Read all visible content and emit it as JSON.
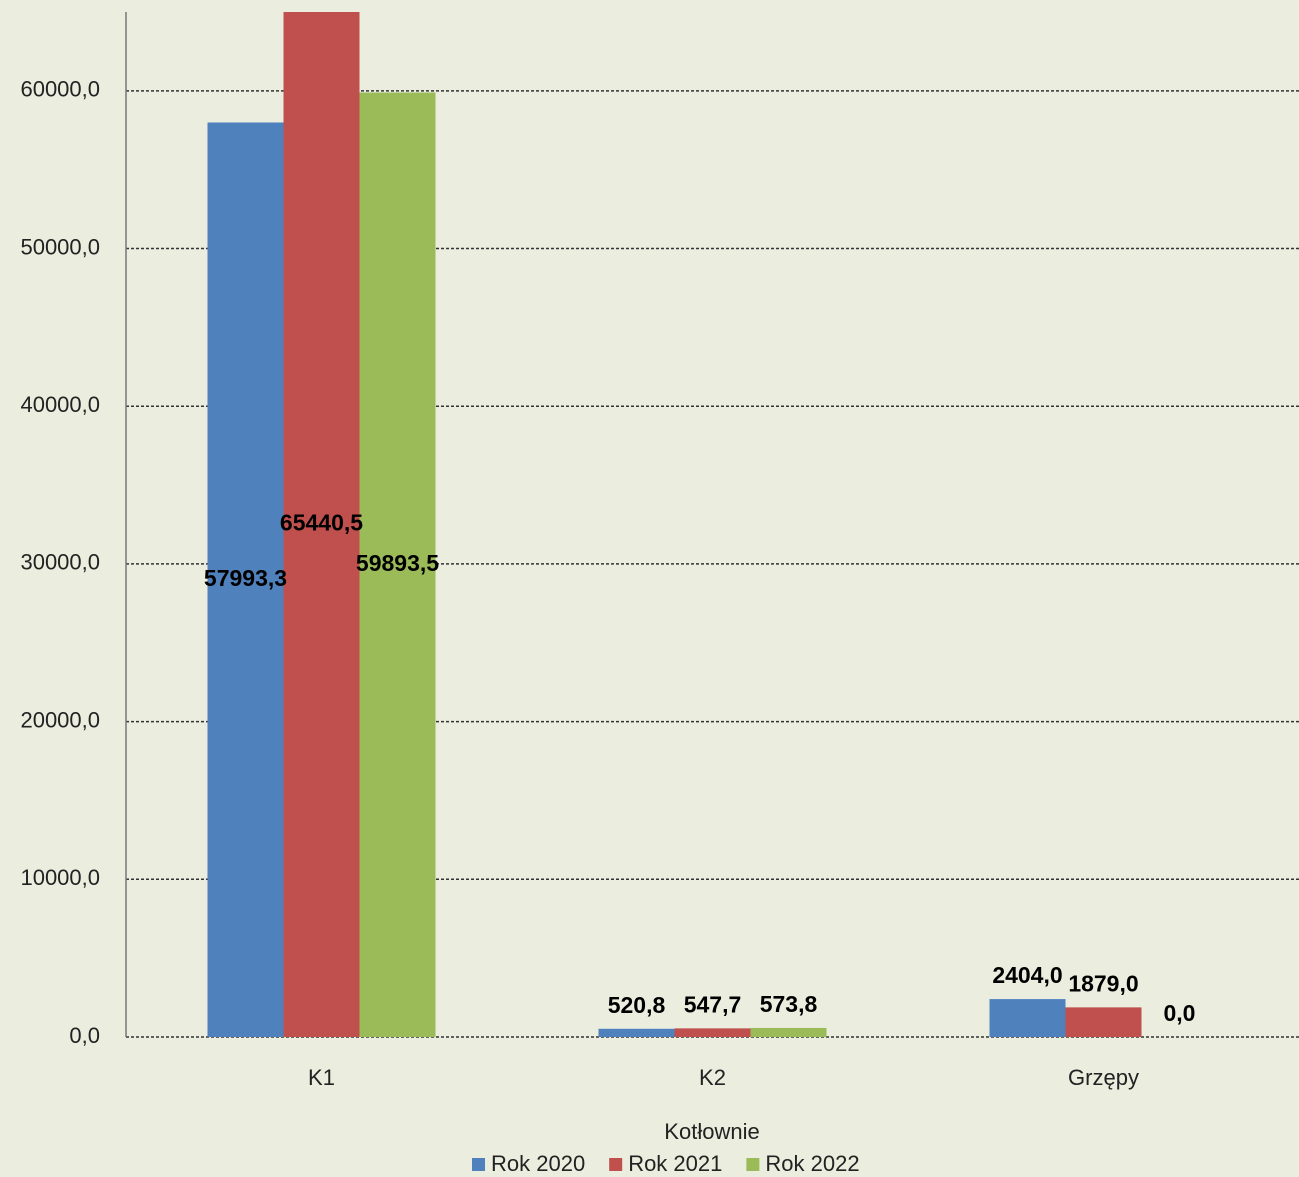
{
  "chart_data": {
    "type": "bar",
    "x_label": "Kotłownie",
    "categories": [
      "K1",
      "K2",
      "Grzępy"
    ],
    "series": [
      {
        "name": "Rok 2020",
        "color": "#4f81bd",
        "values": [
          57993.3,
          520.8,
          2404.0
        ],
        "value_labels": [
          "57993,3",
          "520,8",
          "2404,0"
        ]
      },
      {
        "name": "Rok 2021",
        "color": "#c0504d",
        "values": [
          65440.5,
          547.7,
          1879.0
        ],
        "value_labels": [
          "65440,5",
          "547,7",
          "1879,0"
        ]
      },
      {
        "name": "Rok 2022",
        "color": "#9bbb59",
        "values": [
          59893.5,
          573.8,
          0.0
        ],
        "value_labels": [
          "59893,5",
          "573,8",
          "0,0"
        ]
      }
    ],
    "ylim": [
      0,
      65000
    ],
    "yticks": [
      {
        "value": 0,
        "label": "0,0"
      },
      {
        "value": 10000,
        "label": "10000,0"
      },
      {
        "value": 20000,
        "label": "20000,0"
      },
      {
        "value": 30000,
        "label": "30000,0"
      },
      {
        "value": 40000,
        "label": "40000,0"
      },
      {
        "value": 50000,
        "label": "50000,0"
      },
      {
        "value": 60000,
        "label": "60000,0"
      }
    ],
    "grid": true,
    "legend": "bottom"
  }
}
